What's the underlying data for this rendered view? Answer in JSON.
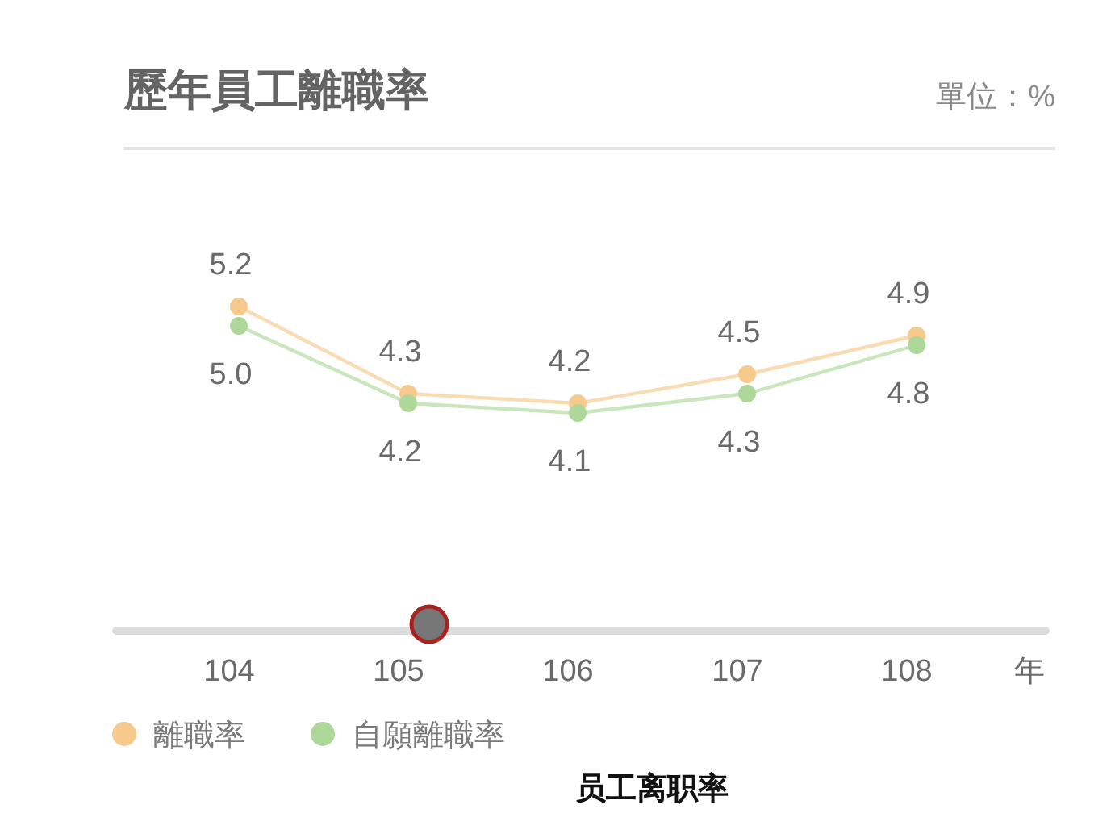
{
  "chart_data": {
    "type": "line",
    "title": "歷年員工離職率",
    "xlabel": "年",
    "annotations": [
      "單位：%",
      "员工离职率"
    ],
    "categories": [
      "104",
      "105",
      "106",
      "107",
      "108"
    ],
    "series": [
      {
        "name": "離職率",
        "color": "#f6c98c",
        "values": [
          5.2,
          4.3,
          4.2,
          4.5,
          4.9
        ],
        "value_labels": [
          "5.2",
          "4.3",
          "4.2",
          "4.5",
          "4.9"
        ]
      },
      {
        "name": "自願離職率",
        "color": "#aed89a",
        "values": [
          5.0,
          4.2,
          4.1,
          4.3,
          4.8
        ],
        "value_labels": [
          "5.0",
          "4.2",
          "4.1",
          "4.3",
          "4.8"
        ]
      }
    ],
    "marker": "circle",
    "legend": "bottom left"
  }
}
